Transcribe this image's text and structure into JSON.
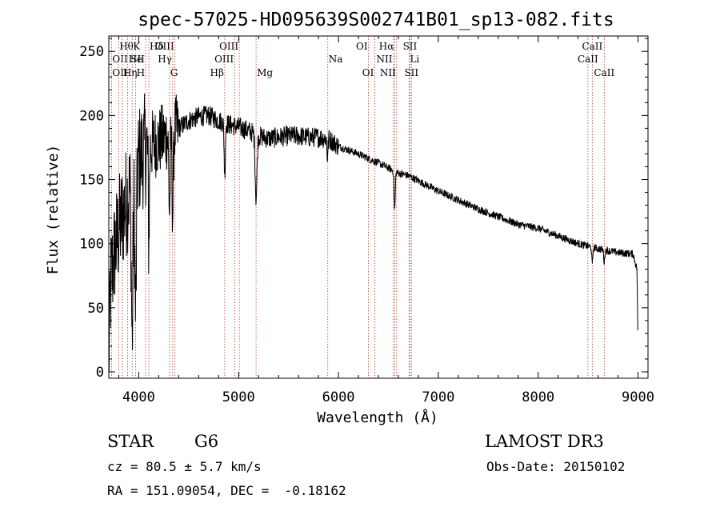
{
  "chart_data": {
    "type": "line",
    "title": "spec-57025-HD095639S002741B01_sp13-082.fits",
    "xlabel": "Wavelength (Å)",
    "ylabel": "Flux (relative)",
    "xlim": [
      3700,
      9100
    ],
    "ylim": [
      -5,
      262
    ],
    "xticks": [
      4000,
      5000,
      6000,
      7000,
      8000,
      9000
    ],
    "yticks": [
      0,
      50,
      100,
      150,
      200,
      250
    ],
    "continuum": [
      [
        3700,
        5
      ],
      [
        3720,
        70
      ],
      [
        3760,
        95
      ],
      [
        3800,
        110
      ],
      [
        3850,
        125
      ],
      [
        3900,
        140
      ],
      [
        3950,
        150
      ],
      [
        4000,
        165
      ],
      [
        4050,
        172
      ],
      [
        4100,
        176
      ],
      [
        4200,
        180
      ],
      [
        4300,
        185
      ],
      [
        4400,
        190
      ],
      [
        4500,
        196
      ],
      [
        4600,
        199
      ],
      [
        4700,
        200
      ],
      [
        4800,
        196
      ],
      [
        4900,
        193
      ],
      [
        5000,
        191
      ],
      [
        5100,
        188
      ],
      [
        5200,
        184
      ],
      [
        5300,
        182
      ],
      [
        5400,
        183
      ],
      [
        5500,
        184
      ],
      [
        5600,
        184
      ],
      [
        5700,
        183
      ],
      [
        5800,
        183
      ],
      [
        5900,
        182
      ],
      [
        6000,
        176
      ],
      [
        6200,
        170
      ],
      [
        6400,
        163
      ],
      [
        6600,
        155
      ],
      [
        6700,
        153
      ],
      [
        6800,
        149
      ],
      [
        7000,
        141
      ],
      [
        7200,
        134
      ],
      [
        7400,
        127
      ],
      [
        7600,
        121
      ],
      [
        7800,
        115
      ],
      [
        8000,
        112
      ],
      [
        8200,
        106
      ],
      [
        8400,
        100
      ],
      [
        8600,
        96
      ],
      [
        8800,
        93
      ],
      [
        8950,
        92
      ],
      [
        8990,
        80
      ],
      [
        9000,
        18
      ]
    ],
    "absorption_features": [
      {
        "wavelength": 3934,
        "depth": 120,
        "width": 8
      },
      {
        "wavelength": 3969,
        "depth": 110,
        "width": 8
      },
      {
        "wavelength": 4101,
        "depth": 70,
        "width": 6
      },
      {
        "wavelength": 4308,
        "depth": 60,
        "width": 7
      },
      {
        "wavelength": 4340,
        "depth": 65,
        "width": 6
      },
      {
        "wavelength": 4861,
        "depth": 40,
        "width": 6
      },
      {
        "wavelength": 5175,
        "depth": 50,
        "width": 9
      },
      {
        "wavelength": 5890,
        "depth": 15,
        "width": 5
      },
      {
        "wavelength": 6563,
        "depth": 30,
        "width": 6
      },
      {
        "wavelength": 8542,
        "depth": 14,
        "width": 5
      },
      {
        "wavelength": 8662,
        "depth": 10,
        "width": 5
      }
    ],
    "noise_amplitude": {
      "blue": 28,
      "mid": 8,
      "red": 3
    },
    "line_markers": [
      {
        "label": "Hθ",
        "wavelength": 3798,
        "row": 1,
        "align": "left"
      },
      {
        "label": "OII",
        "wavelength": 3727,
        "row": 2,
        "align": "left"
      },
      {
        "label": "OII",
        "wavelength": 3727,
        "row": 3,
        "align": "left"
      },
      {
        "label": "K",
        "wavelength": 3934,
        "row": 1,
        "align": "left"
      },
      {
        "label": "He",
        "wavelength": 3889,
        "row": 2,
        "align": "left"
      },
      {
        "label": "Hη",
        "wavelength": 3835,
        "row": 3,
        "align": "left"
      },
      {
        "label": "Hδ",
        "wavelength": 4101,
        "row": 1,
        "align": "left"
      },
      {
        "label": "SII",
        "wavelength": 4068,
        "row": 2,
        "align": "right"
      },
      {
        "label": "H",
        "wavelength": 3969,
        "row": 3,
        "align": "left"
      },
      {
        "label": "OIII",
        "wavelength": 4363,
        "row": 1,
        "align": "right"
      },
      {
        "label": "Hγ",
        "wavelength": 4340,
        "row": 2,
        "align": "right"
      },
      {
        "label": "G",
        "wavelength": 4308,
        "row": 3,
        "align": "left"
      },
      {
        "label": "OIII",
        "wavelength": 5007,
        "row": 1,
        "align": "right"
      },
      {
        "label": "OIII",
        "wavelength": 4959,
        "row": 2,
        "align": "right"
      },
      {
        "label": "Hβ",
        "wavelength": 4861,
        "row": 3,
        "align": "right"
      },
      {
        "label": "Mg",
        "wavelength": 5175,
        "row": 3,
        "align": "left"
      },
      {
        "label": "Na",
        "wavelength": 5893,
        "row": 2,
        "align": "left"
      },
      {
        "label": "OI",
        "wavelength": 6300,
        "row": 1,
        "align": "right"
      },
      {
        "label": "OI",
        "wavelength": 6363,
        "row": 3,
        "align": "right"
      },
      {
        "label": "Hα",
        "wavelength": 6563,
        "row": 1,
        "align": "right"
      },
      {
        "label": "NII",
        "wavelength": 6548,
        "row": 2,
        "align": "right"
      },
      {
        "label": "NII",
        "wavelength": 6583,
        "row": 3,
        "align": "right"
      },
      {
        "label": "SII",
        "wavelength": 6716,
        "row": 1,
        "align": "center"
      },
      {
        "label": "Li",
        "wavelength": 6708,
        "row": 2,
        "align": "left"
      },
      {
        "label": "SII",
        "wavelength": 6731,
        "row": 3,
        "align": "center"
      },
      {
        "label": "CaII",
        "wavelength": 8542,
        "row": 1,
        "align": "center"
      },
      {
        "label": "CaII",
        "wavelength": 8498,
        "row": 2,
        "align": "center"
      },
      {
        "label": "CaII",
        "wavelength": 8662,
        "row": 3,
        "align": "center"
      }
    ]
  },
  "info": {
    "class": "STAR",
    "subclass": "G6",
    "redshift": "cz = 80.5 ± 5.7 km/s",
    "coords": "RA = 151.09054, DEC =  -0.18162",
    "survey": "LAMOST DR3",
    "obs_date": "Obs-Date: 20150102"
  },
  "colors": {
    "line_marker": "#c0392b",
    "spectrum": "#000000",
    "axes": "#000000"
  }
}
